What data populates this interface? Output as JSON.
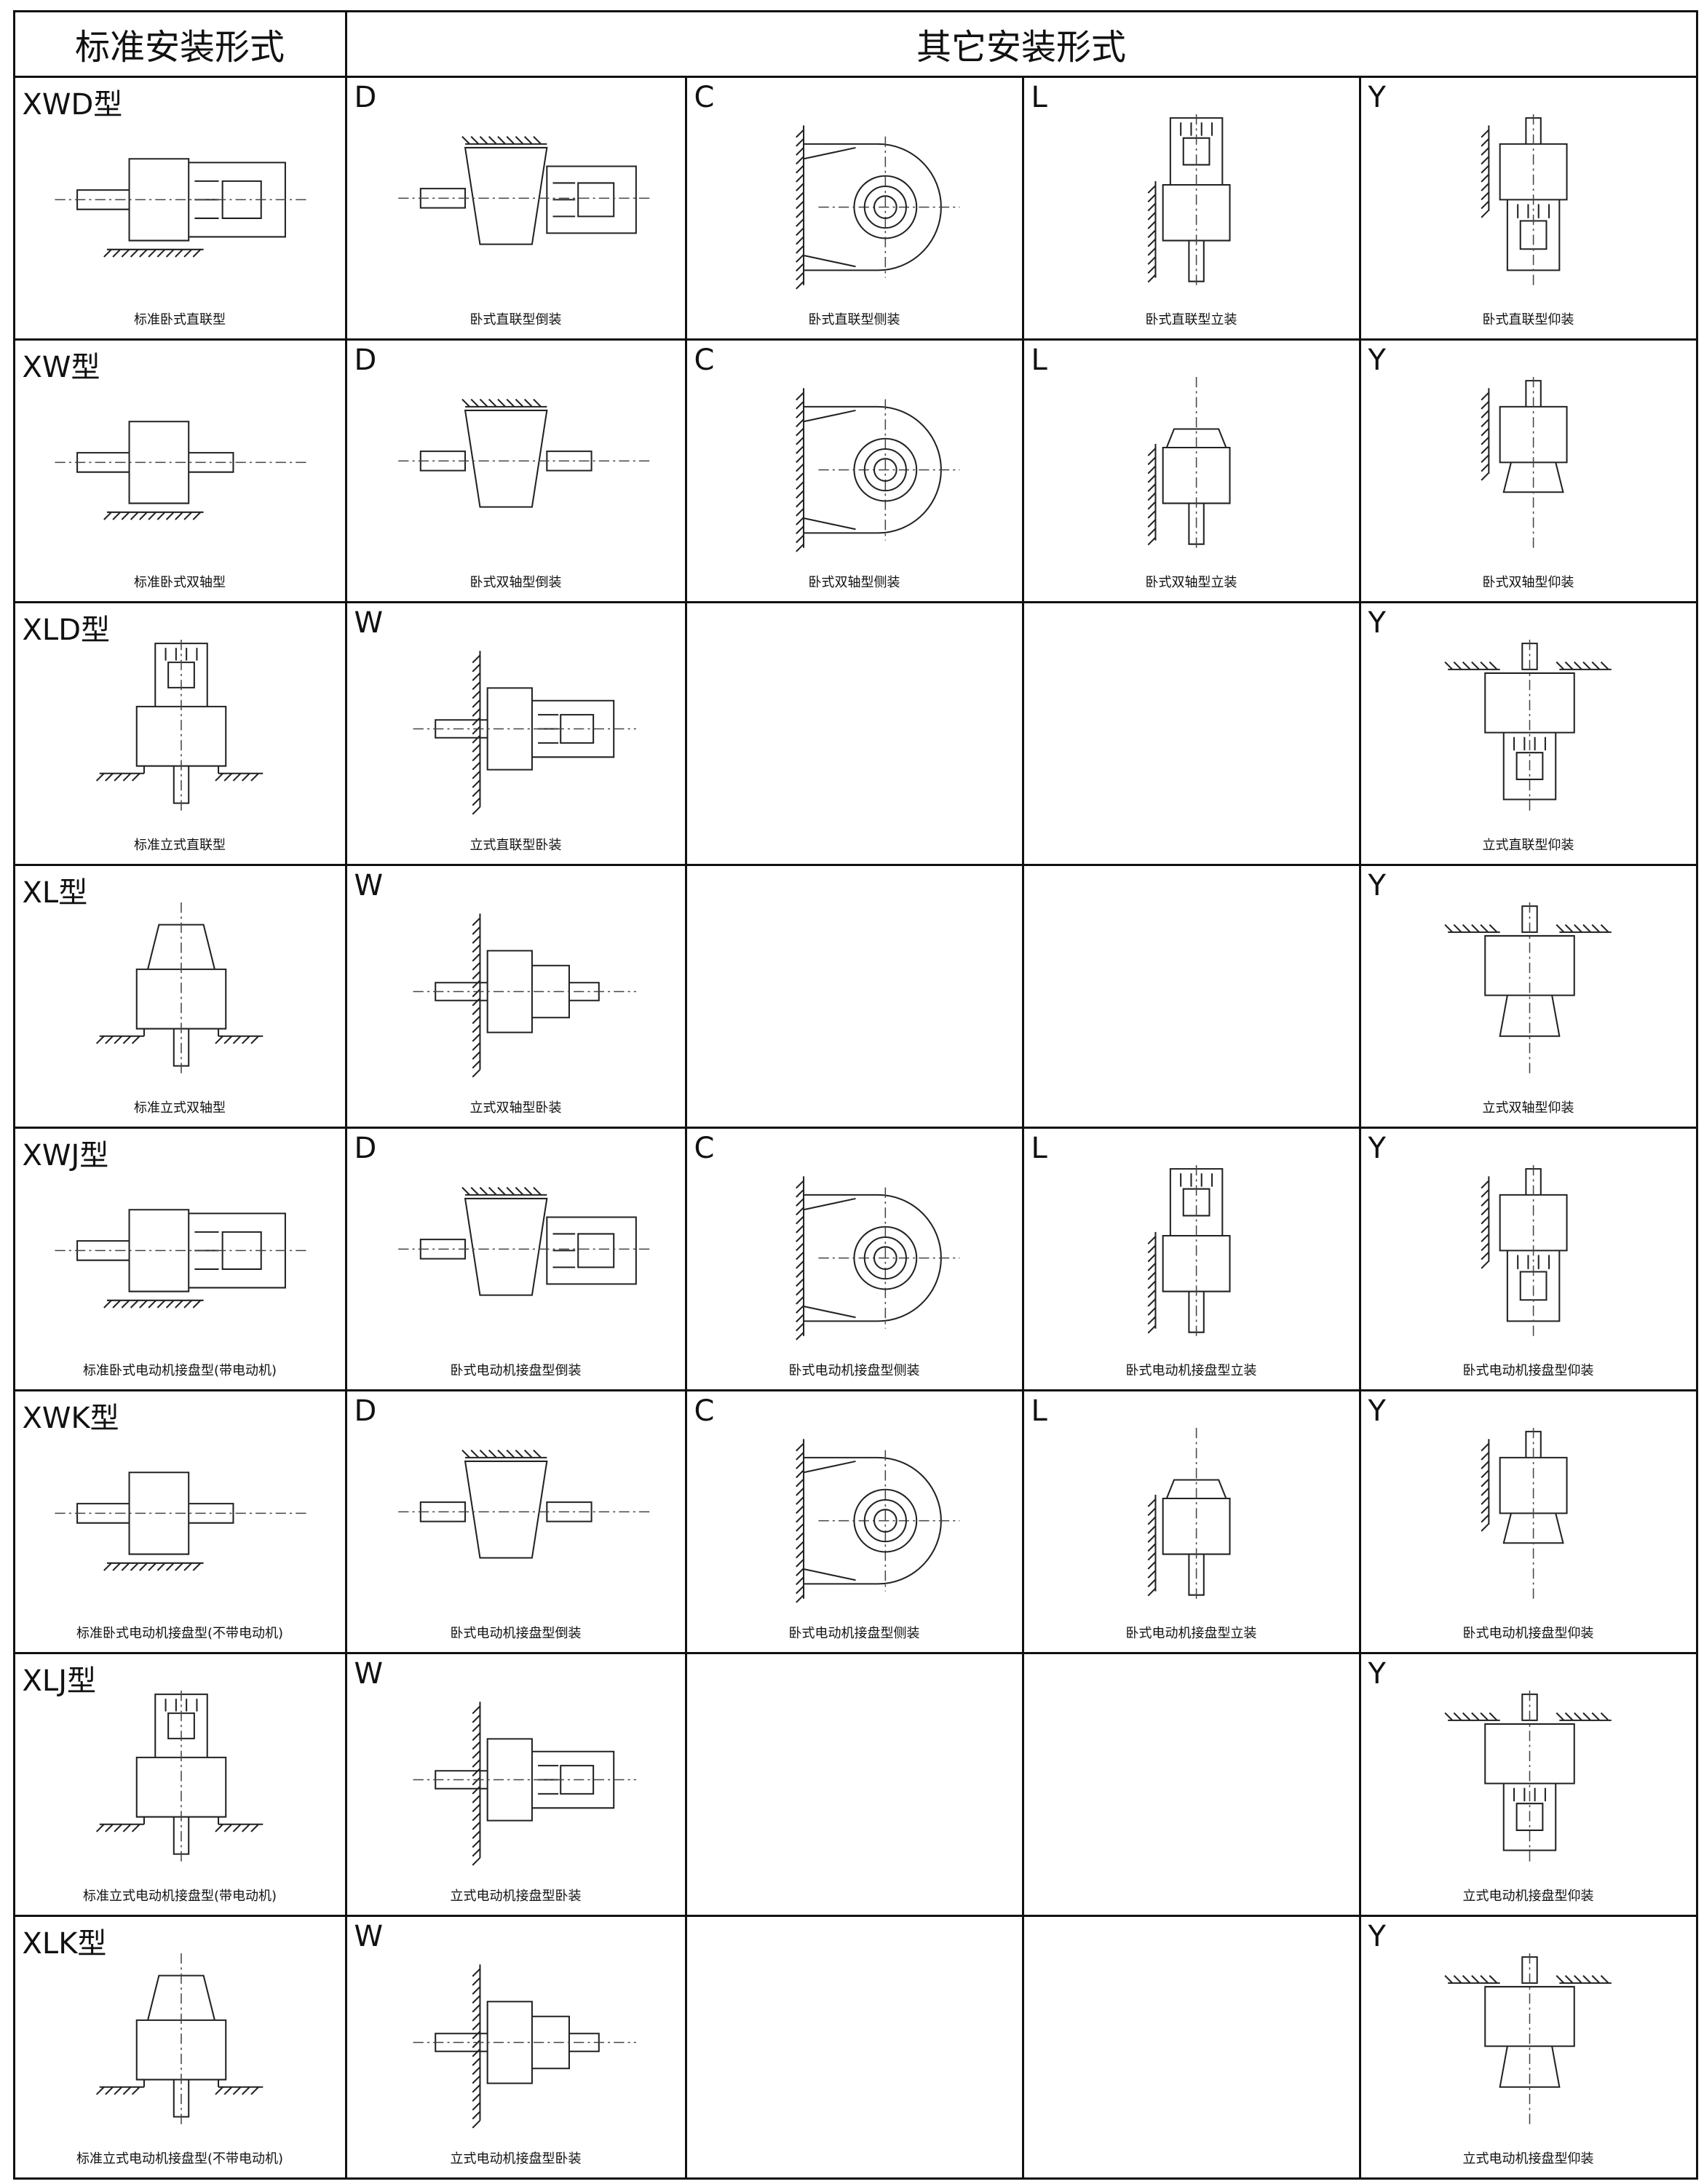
{
  "header": {
    "standard": "标准安装形式",
    "other": "其它安装形式"
  },
  "rows": [
    {
      "standard": {
        "code": "XWD型",
        "caption": "标准卧式直联型"
      },
      "others": [
        {
          "code": "D",
          "caption": "卧式直联型倒装"
        },
        {
          "code": "C",
          "caption": "卧式直联型侧装"
        },
        {
          "code": "L",
          "caption": "卧式直联型立装"
        },
        {
          "code": "Y",
          "caption": "卧式直联型仰装"
        }
      ]
    },
    {
      "standard": {
        "code": "XW型",
        "caption": "标准卧式双轴型"
      },
      "others": [
        {
          "code": "D",
          "caption": "卧式双轴型倒装"
        },
        {
          "code": "C",
          "caption": "卧式双轴型侧装"
        },
        {
          "code": "L",
          "caption": "卧式双轴型立装"
        },
        {
          "code": "Y",
          "caption": "卧式双轴型仰装"
        }
      ]
    },
    {
      "standard": {
        "code": "XLD型",
        "caption": "标准立式直联型"
      },
      "others": [
        {
          "code": "W",
          "caption": "立式直联型卧装"
        },
        null,
        null,
        {
          "code": "Y",
          "caption": "立式直联型仰装"
        }
      ]
    },
    {
      "standard": {
        "code": "XL型",
        "caption": "标准立式双轴型"
      },
      "others": [
        {
          "code": "W",
          "caption": "立式双轴型卧装"
        },
        null,
        null,
        {
          "code": "Y",
          "caption": "立式双轴型仰装"
        }
      ]
    },
    {
      "standard": {
        "code": "XWJ型",
        "caption": "标准卧式电动机接盘型(带电动机)"
      },
      "others": [
        {
          "code": "D",
          "caption": "卧式电动机接盘型倒装"
        },
        {
          "code": "C",
          "caption": "卧式电动机接盘型侧装"
        },
        {
          "code": "L",
          "caption": "卧式电动机接盘型立装"
        },
        {
          "code": "Y",
          "caption": "卧式电动机接盘型仰装"
        }
      ]
    },
    {
      "standard": {
        "code": "XWK型",
        "caption": "标准卧式电动机接盘型(不带电动机)"
      },
      "others": [
        {
          "code": "D",
          "caption": "卧式电动机接盘型倒装"
        },
        {
          "code": "C",
          "caption": "卧式电动机接盘型侧装"
        },
        {
          "code": "L",
          "caption": "卧式电动机接盘型立装"
        },
        {
          "code": "Y",
          "caption": "卧式电动机接盘型仰装"
        }
      ]
    },
    {
      "standard": {
        "code": "XLJ型",
        "caption": "标准立式电动机接盘型(带电动机)"
      },
      "others": [
        {
          "code": "W",
          "caption": "立式电动机接盘型卧装"
        },
        null,
        null,
        {
          "code": "Y",
          "caption": "立式电动机接盘型仰装"
        }
      ]
    },
    {
      "standard": {
        "code": "XLK型",
        "caption": "标准立式电动机接盘型(不带电动机)"
      },
      "others": [
        {
          "code": "W",
          "caption": "立式电动机接盘型卧装"
        },
        null,
        null,
        {
          "code": "Y",
          "caption": "立式电动机接盘型仰装"
        }
      ]
    }
  ]
}
